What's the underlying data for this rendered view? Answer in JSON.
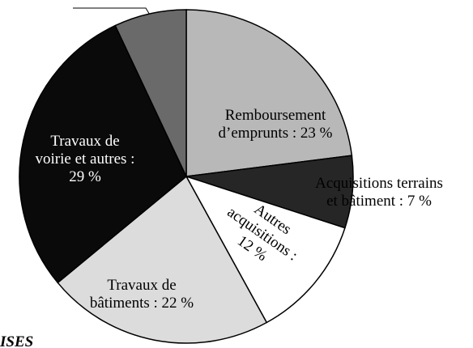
{
  "chart_data": {
    "type": "pie",
    "categories": [
      [
        "Remboursement",
        "d’emprunts : 23 %"
      ],
      [
        "Acquisitions terrains",
        "et bâtiment : 7 %"
      ],
      [
        "Autres",
        "acquisitions :",
        "12 %"
      ],
      [
        "Travaux de",
        "bâtiments : 22 %"
      ],
      [
        "Travaux de",
        "voirie et autres :",
        "29 %"
      ],
      null
    ],
    "values": [
      23,
      7,
      12,
      22,
      29,
      7
    ],
    "colors": [
      "#b8b8b8",
      "#262626",
      "#ffffff",
      "#dcdcdc",
      "#0a0a0a",
      "#6a6a6a"
    ],
    "caption": "ISES"
  }
}
